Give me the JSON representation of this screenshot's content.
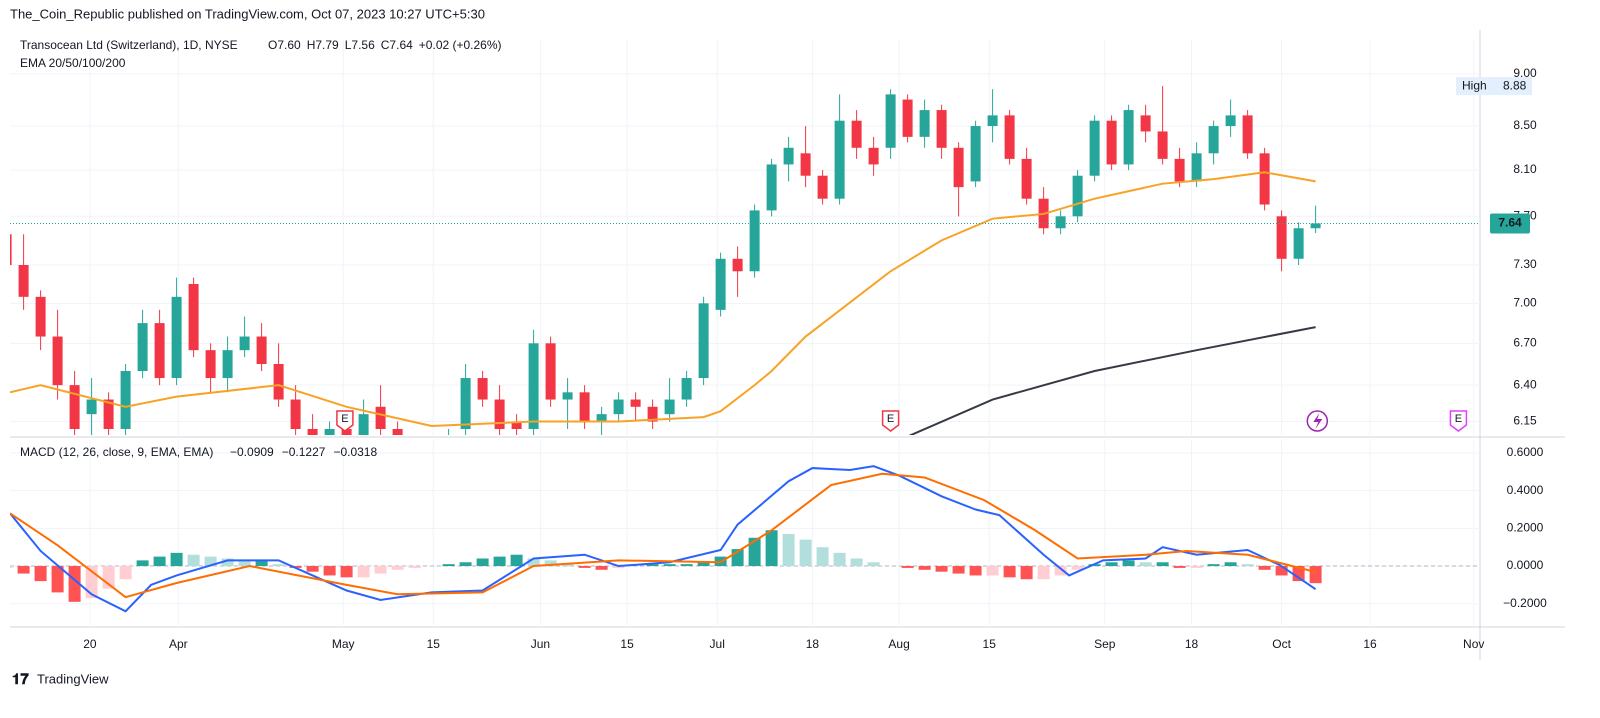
{
  "header": {
    "publisher": "The_Coin_Republic published on TradingView.com, Oct 07, 2023 10:27 UTC+5:30",
    "symbol": "Transocean Ltd (Switzerland), 1D, NYSE",
    "ohlc": [
      "O7.60",
      "H7.79",
      "L7.56",
      "C7.64",
      "+0.02 (+0.26%)"
    ],
    "indicator": "EMA 20/50/100/200",
    "footer": "TradingView"
  },
  "chart_data": [
    {
      "type": "candlestick",
      "log_scale": true,
      "grid": true,
      "up_color": "#26a69a",
      "down_color": "#f23645",
      "xlim": [
        0.2,
        86.67
      ],
      "xticks": [
        {
          "value": 4.9,
          "label": "20"
        },
        {
          "value": 10.1,
          "label": "Apr"
        },
        {
          "value": 19.8,
          "label": "May"
        },
        {
          "value": 25.1,
          "label": "15"
        },
        {
          "value": 31.4,
          "label": "Jun"
        },
        {
          "value": 36.5,
          "label": "15"
        },
        {
          "value": 41.8,
          "label": "Jul"
        },
        {
          "value": 47.4,
          "label": "18"
        },
        {
          "value": 52.5,
          "label": "Aug"
        },
        {
          "value": 57.8,
          "label": "15"
        },
        {
          "value": 64.6,
          "label": "Sep"
        },
        {
          "value": 69.7,
          "label": "18"
        },
        {
          "value": 75,
          "label": "Oct"
        },
        {
          "value": 80.2,
          "label": "16"
        },
        {
          "value": 86.3,
          "label": "Nov"
        }
      ],
      "ylim": [
        6.06,
        9.34
      ],
      "yticks": [
        6.15,
        {
          "value": 6.4,
          "label": "6.40"
        },
        {
          "value": 6.7,
          "label": "6.70"
        },
        {
          "value": 7,
          "label": "7.00"
        },
        {
          "value": 7.3,
          "label": "7.30"
        },
        {
          "value": 7.7,
          "label": "7.70"
        },
        {
          "value": 8.1,
          "label": "8.10"
        },
        {
          "value": 8.5,
          "label": "8.50"
        },
        {
          "value": 9,
          "label": "9.00"
        }
      ],
      "open": [
        7.55,
        7.3,
        7.05,
        6.75,
        6.4,
        6.2,
        6.3,
        6.1,
        6.5,
        6.85,
        6.45,
        7.15,
        6.65,
        6.45,
        6.65,
        6.75,
        6.55,
        6.3,
        6.1,
        6.0,
        6.1,
        6.05,
        6.25,
        6.1,
        5.95,
        5.95,
        6.0,
        6.1,
        6.45,
        6.3,
        6.15,
        6.1,
        6.7,
        6.3,
        6.35,
        6.15,
        6.2,
        6.3,
        6.25,
        6.2,
        6.3,
        6.45,
        6.95,
        7.35,
        7.25,
        7.75,
        8.15,
        8.25,
        8.05,
        7.85,
        8.55,
        8.3,
        8.3,
        8.75,
        8.4,
        8.65,
        8.3,
        8.0,
        8.5,
        8.6,
        8.2,
        7.85,
        7.6,
        7.7,
        8.05,
        8.55,
        8.15,
        8.6,
        8.45,
        8.2,
        8.0,
        8.25,
        8.5,
        8.6,
        8.25,
        7.7,
        7.35,
        7.6
      ],
      "high": [
        7.65,
        7.55,
        7.1,
        6.95,
        6.5,
        6.45,
        6.35,
        6.55,
        6.95,
        6.95,
        7.2,
        7.2,
        6.7,
        6.75,
        6.9,
        6.85,
        6.7,
        6.4,
        6.2,
        6.15,
        6.2,
        6.3,
        6.4,
        6.15,
        6.05,
        6.05,
        6.1,
        6.55,
        6.5,
        6.4,
        6.2,
        6.8,
        6.75,
        6.45,
        6.4,
        6.25,
        6.35,
        6.35,
        6.3,
        6.45,
        6.5,
        7.05,
        7.4,
        7.45,
        7.8,
        8.2,
        8.4,
        8.5,
        8.1,
        8.8,
        8.65,
        8.4,
        8.85,
        8.8,
        8.75,
        8.7,
        8.35,
        8.55,
        8.85,
        8.65,
        8.3,
        7.95,
        7.75,
        8.1,
        8.6,
        8.6,
        8.7,
        8.7,
        8.88,
        8.3,
        8.35,
        8.55,
        8.75,
        8.65,
        8.3,
        7.75,
        7.65,
        7.79
      ],
      "low": [
        7.25,
        6.95,
        6.65,
        6.3,
        6.05,
        6.05,
        6.05,
        6.05,
        6.45,
        6.4,
        6.4,
        6.6,
        6.35,
        6.35,
        6.6,
        6.5,
        6.25,
        6.05,
        5.95,
        5.9,
        5.95,
        6.0,
        6.05,
        5.9,
        5.85,
        5.85,
        5.9,
        6.05,
        6.25,
        6.05,
        6.0,
        6.05,
        6.25,
        6.1,
        6.1,
        6.05,
        6.15,
        6.15,
        6.1,
        6.15,
        6.25,
        6.4,
        6.9,
        7.05,
        7.2,
        7.7,
        8.0,
        7.95,
        7.8,
        7.8,
        8.2,
        8.05,
        8.2,
        8.35,
        8.3,
        8.2,
        7.7,
        7.95,
        8.35,
        8.15,
        7.8,
        7.55,
        7.55,
        7.65,
        8.0,
        8.1,
        8.1,
        8.35,
        8.15,
        7.95,
        7.95,
        8.15,
        8.4,
        8.2,
        7.75,
        7.25,
        7.3,
        7.56
      ],
      "close": [
        7.3,
        7.05,
        6.75,
        6.4,
        6.1,
        6.3,
        6.1,
        6.5,
        6.85,
        6.45,
        7.05,
        6.65,
        6.45,
        6.65,
        6.75,
        6.55,
        6.3,
        6.1,
        6.0,
        6.1,
        6.0,
        6.2,
        6.1,
        5.95,
        5.95,
        6.0,
        6.05,
        6.45,
        6.3,
        6.1,
        6.1,
        6.7,
        6.3,
        6.35,
        6.15,
        6.2,
        6.3,
        6.25,
        6.15,
        6.3,
        6.45,
        7.0,
        7.35,
        7.25,
        7.75,
        8.15,
        8.3,
        8.05,
        7.85,
        8.55,
        8.3,
        8.15,
        8.8,
        8.4,
        8.65,
        8.3,
        7.95,
        8.5,
        8.6,
        8.2,
        7.85,
        7.6,
        7.7,
        8.05,
        8.55,
        8.15,
        8.65,
        8.45,
        8.2,
        8.0,
        8.25,
        8.5,
        8.6,
        8.25,
        7.8,
        7.35,
        7.6,
        7.64
      ],
      "series": [
        {
          "color": "#f7a325",
          "x": [
            0.2,
            2,
            7,
            10,
            16,
            20,
            25,
            31,
            36,
            41,
            42,
            44,
            45,
            47,
            52,
            55,
            58,
            61,
            64,
            68,
            71,
            74,
            77
          ],
          "values": [
            6.35,
            6.4,
            6.25,
            6.32,
            6.4,
            6.25,
            6.12,
            6.15,
            6.15,
            6.18,
            6.22,
            6.4,
            6.5,
            6.75,
            7.25,
            7.5,
            7.68,
            7.72,
            7.85,
            7.98,
            8.02,
            8.08,
            8.0
          ]
        },
        {
          "color": "#363a45",
          "x": [
            53,
            58,
            64,
            70,
            77
          ],
          "values": [
            6.05,
            6.3,
            6.5,
            6.65,
            6.82
          ]
        }
      ],
      "last_price": 7.64,
      "last_color": "#26a69a",
      "high_marker": {
        "label": "High",
        "value": 8.88
      },
      "events": [
        {
          "label": "E",
          "x": 19.9,
          "color": "#f23645"
        },
        {
          "label": "E",
          "x": 52,
          "color": "#f23645"
        },
        {
          "label": "E",
          "x": 85.4,
          "color": "#e040fb"
        }
      ],
      "dividend": {
        "x": 77.1,
        "color": "#9c27b0"
      }
    },
    {
      "type": "macd",
      "title": "MACD (12, 26, close, 9, EMA, EMA)",
      "grid": true,
      "xlim": [
        0.2,
        86.67
      ],
      "ylim": [
        -0.313,
        0.669
      ],
      "yticks": [
        {
          "value": -0.2,
          "label": "−0.2000"
        },
        {
          "value": 0,
          "label": "0.0000"
        },
        {
          "value": 0.2,
          "label": "0.2000"
        },
        {
          "value": 0.4,
          "label": "0.4000"
        },
        {
          "value": 0.6,
          "label": "0.6000"
        }
      ],
      "legend_values": [
        {
          "value": -0.0909,
          "label": "−0.0909",
          "color": "#ffcdd2"
        },
        {
          "value": -0.1227,
          "label": "−0.1227",
          "color": "#2962ff"
        },
        {
          "value": -0.0318,
          "label": "−0.0318",
          "color": "#ff6d00"
        }
      ],
      "histogram_colors": [
        "#26a69a",
        "#b2dfdb",
        "#ffcdd2",
        "#ff5252"
      ],
      "histogram": [
        -0.01,
        -0.04,
        -0.08,
        -0.14,
        -0.19,
        -0.17,
        -0.12,
        -0.07,
        0.03,
        0.05,
        0.07,
        0.06,
        0.05,
        0.04,
        0.03,
        0.03,
        0.01,
        -0.01,
        -0.03,
        -0.05,
        -0.06,
        -0.06,
        -0.04,
        -0.02,
        -0.01,
        0,
        0.01,
        0.02,
        0.04,
        0.05,
        0.06,
        0.04,
        0.03,
        0.01,
        -0.01,
        -0.02,
        -0.01,
        0,
        0.01,
        0.01,
        0.01,
        0.02,
        0.05,
        0.09,
        0.15,
        0.19,
        0.17,
        0.14,
        0.1,
        0.07,
        0.04,
        0.02,
        0,
        -0.01,
        -0.02,
        -0.03,
        -0.04,
        -0.05,
        -0.05,
        -0.06,
        -0.07,
        -0.07,
        -0.05,
        -0.02,
        0.01,
        0.02,
        0.03,
        0.02,
        0.02,
        -0.01,
        -0.01,
        0.01,
        0.02,
        0.01,
        -0.02,
        -0.05,
        -0.08,
        -0.0909
      ],
      "series": [
        {
          "color": "#2962ff",
          "x": [
            0.2,
            2,
            5,
            7,
            8.5,
            10,
            13,
            16,
            18,
            20,
            22,
            25,
            28,
            31,
            34,
            36,
            39,
            42,
            43,
            46,
            47.4,
            49.6,
            51,
            52.5,
            55,
            57,
            58.4,
            61,
            62.5,
            64.5,
            67,
            68,
            70,
            73,
            74.9,
            77
          ],
          "values": [
            0.28,
            0.08,
            -0.15,
            -0.24,
            -0.1,
            -0.05,
            0.03,
            0.03,
            -0.05,
            -0.13,
            -0.18,
            -0.14,
            -0.13,
            0.04,
            0.06,
            0,
            0.02,
            0.085,
            0.22,
            0.45,
            0.52,
            0.51,
            0.53,
            0.48,
            0.37,
            0.3,
            0.27,
            0.06,
            -0.05,
            0.03,
            0.04,
            0.1,
            0.06,
            0.085,
            0.005,
            -0.1227
          ]
        },
        {
          "color": "#ff6d00",
          "x": [
            0.2,
            3,
            7,
            10,
            14.3,
            20,
            23,
            28,
            31,
            36,
            42,
            45,
            48.5,
            51.5,
            54,
            57.5,
            60.5,
            63,
            67,
            69.4,
            73,
            77
          ],
          "values": [
            0.28,
            0.11,
            -0.165,
            -0.09,
            0,
            -0.1,
            -0.15,
            -0.14,
            0,
            0.03,
            0.02,
            0.19,
            0.43,
            0.49,
            0.47,
            0.35,
            0.19,
            0.04,
            0.06,
            0.08,
            0.06,
            -0.0318
          ]
        }
      ]
    }
  ]
}
